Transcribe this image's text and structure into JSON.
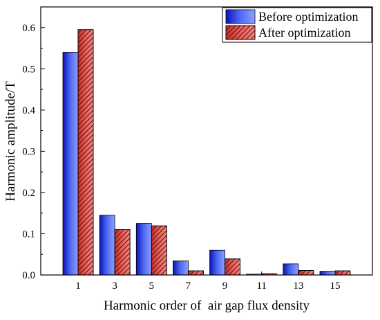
{
  "chart_data": {
    "type": "bar",
    "title": "",
    "xlabel": "Harmonic order of  air gap flux density",
    "ylabel": "Harmonic amplitude/T",
    "categories": [
      "1",
      "3",
      "5",
      "7",
      "9",
      "11",
      "13",
      "15"
    ],
    "series": [
      {
        "name": "Before optimization",
        "values": [
          0.54,
          0.145,
          0.125,
          0.034,
          0.06,
          0.002,
          0.027,
          0.009
        ],
        "color": "#3b4fe0",
        "pattern": "gradient"
      },
      {
        "name": "After optimization",
        "values": [
          0.595,
          0.11,
          0.119,
          0.01,
          0.039,
          0.003,
          0.011,
          0.01
        ],
        "color": "#d94a45",
        "pattern": "hatched"
      }
    ],
    "ylim": [
      0,
      0.65
    ],
    "yticks": [
      "0.0",
      "0.1",
      "0.2",
      "0.3",
      "0.4",
      "0.5",
      "0.6"
    ],
    "grid": false,
    "legend_position": "top-right"
  }
}
